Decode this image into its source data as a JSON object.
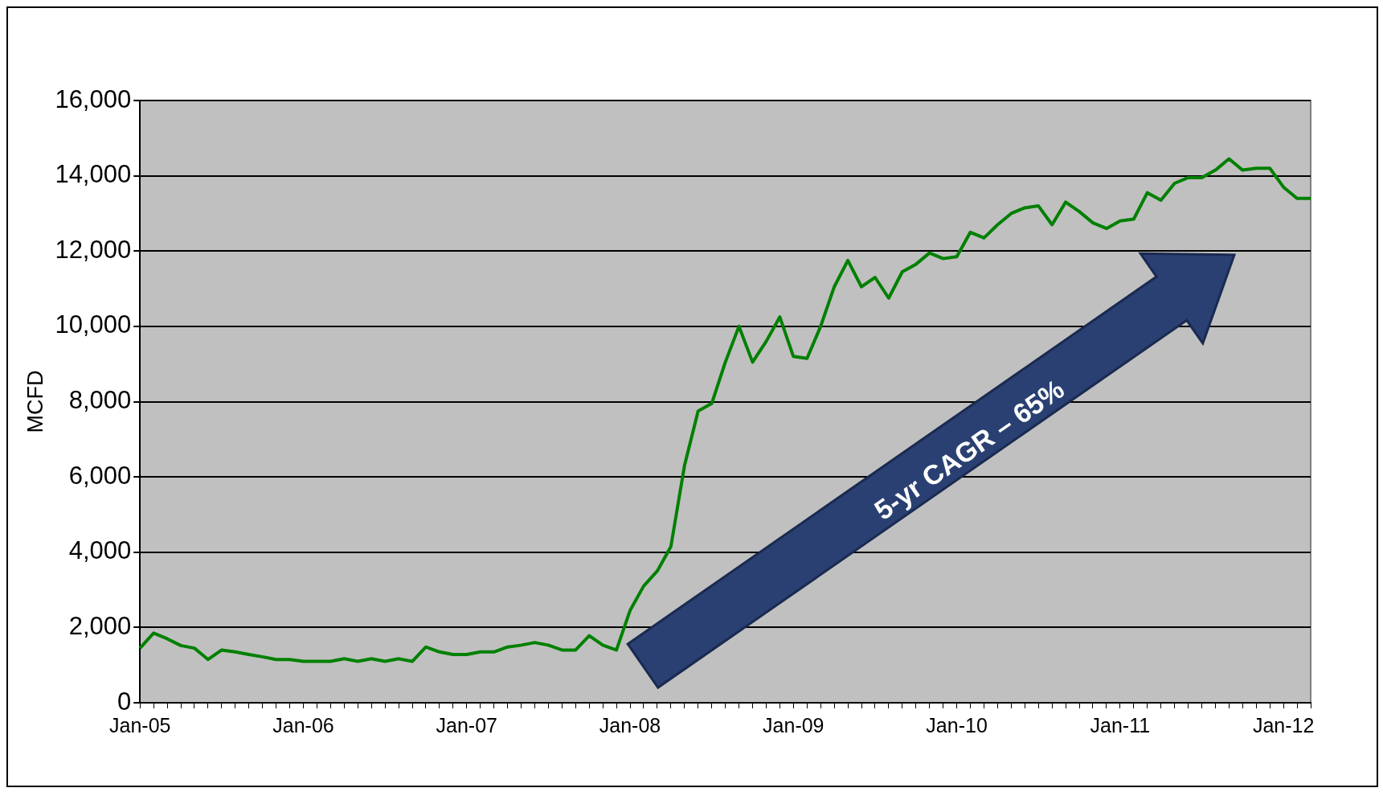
{
  "chart_data": {
    "type": "line",
    "ylabel": "MCFD",
    "categories": [
      "Jan-05",
      null,
      null,
      null,
      null,
      null,
      null,
      null,
      null,
      null,
      null,
      null,
      "Jan-06",
      null,
      null,
      null,
      null,
      null,
      null,
      null,
      null,
      null,
      null,
      null,
      "Jan-07",
      null,
      null,
      null,
      null,
      null,
      null,
      null,
      null,
      null,
      null,
      null,
      "Jan-08",
      null,
      null,
      null,
      null,
      null,
      null,
      null,
      null,
      null,
      null,
      null,
      "Jan-09",
      null,
      null,
      null,
      null,
      null,
      null,
      null,
      null,
      null,
      null,
      null,
      "Jan-10",
      null,
      null,
      null,
      null,
      null,
      null,
      null,
      null,
      null,
      null,
      null,
      "Jan-11",
      null,
      null,
      null,
      null,
      null,
      null,
      null,
      null,
      null,
      null,
      null,
      "Jan-12",
      null,
      null
    ],
    "series": [
      {
        "color": "#008000",
        "values": [
          1450,
          1850,
          1700,
          1520,
          1450,
          1150,
          1400,
          1350,
          1280,
          1220,
          1150,
          1150,
          1100,
          1100,
          1100,
          1170,
          1100,
          1170,
          1100,
          1170,
          1100,
          1480,
          1350,
          1280,
          1280,
          1350,
          1350,
          1480,
          1530,
          1600,
          1530,
          1400,
          1400,
          1780,
          1530,
          1400,
          2450,
          3100,
          3500,
          4150,
          6300,
          7750,
          7950,
          9050,
          10000,
          9050,
          9600,
          10250,
          9200,
          9150,
          10000,
          11050,
          11750,
          11050,
          11300,
          10750,
          11450,
          11650,
          11950,
          11800,
          11850,
          12500,
          12350,
          12700,
          13000,
          13150,
          13200,
          12700,
          13300,
          13050,
          12750,
          12600,
          12800,
          12850,
          13550,
          13350,
          13800,
          13950,
          13950,
          14150,
          14450,
          14150,
          14200,
          14200,
          13700,
          13400,
          13400
        ]
      }
    ],
    "ylim": [
      0,
      16000
    ],
    "yticks": [
      {
        "value": 0,
        "label": "0"
      },
      {
        "value": 2000,
        "label": "2,000"
      },
      {
        "value": 4000,
        "label": "4,000"
      },
      {
        "value": 6000,
        "label": "6,000"
      },
      {
        "value": 8000,
        "label": "8,000"
      },
      {
        "value": 10000,
        "label": "10,000"
      },
      {
        "value": 12000,
        "label": "12,000"
      },
      {
        "value": 14000,
        "label": "14,000"
      },
      {
        "value": 16000,
        "label": "16,000"
      }
    ],
    "grid": "y",
    "legend": false,
    "marker": "none",
    "line_style": "solid",
    "annotations": [
      "5-yr CAGR – 65%"
    ]
  }
}
